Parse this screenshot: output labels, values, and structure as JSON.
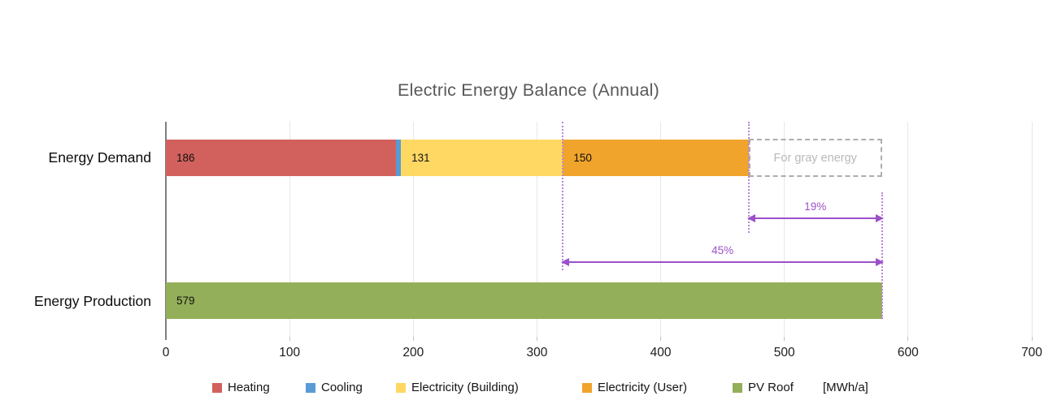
{
  "title": "Electric Energy Balance (Annual)",
  "unit_label": "[MWh/a]",
  "chart_data": {
    "type": "bar",
    "orientation": "horizontal",
    "stacked": true,
    "title": "Electric Energy Balance (Annual)",
    "unit": "[MWh/a]",
    "xlim": [
      0,
      700
    ],
    "xticks": [
      0,
      100,
      200,
      300,
      400,
      500,
      600,
      700
    ],
    "grid": true,
    "legend_position": "bottom",
    "categories": [
      "Energy Demand",
      "Energy Production"
    ],
    "legend": [
      {
        "name": "Heating",
        "color": "#D2615D"
      },
      {
        "name": "Cooling",
        "color": "#5B9BD5"
      },
      {
        "name": "Electricity (Building)",
        "color": "#FFD863"
      },
      {
        "name": "Electricity (User)",
        "color": "#F0A42C"
      },
      {
        "name": "PV Roof",
        "color": "#94AF59"
      }
    ],
    "rows": [
      {
        "category": "Energy Demand",
        "segments": [
          {
            "series": "Heating",
            "value": 186,
            "label": "186"
          },
          {
            "series": "Cooling",
            "value": 4,
            "label": ""
          },
          {
            "series": "Electricity (Building)",
            "value": 131,
            "label": "131"
          },
          {
            "series": "Electricity (User)",
            "value": 150,
            "label": "150"
          }
        ]
      },
      {
        "category": "Energy Production",
        "segments": [
          {
            "series": "PV Roof",
            "value": 579,
            "label": "579"
          }
        ]
      }
    ],
    "annotations": {
      "gray_box": {
        "label": "For gray energy",
        "row": 0,
        "from": 471,
        "to": 579
      },
      "arrows": [
        {
          "label": "19%",
          "from": 471,
          "to": 579
        },
        {
          "label": "45%",
          "from": 321,
          "to": 579
        }
      ],
      "dotted_guides_x": [
        321,
        471,
        579
      ]
    },
    "colors": {
      "annotation_purple": "#9B51C9",
      "dotted_purple": "#BA84DA",
      "gray_dashed_border": "#ADADAD",
      "gray_dashed_text": "#B9B9B9",
      "title_gray": "#595959",
      "axis_line": "#7F7F7F",
      "gridline": "#E7E7E7"
    }
  }
}
